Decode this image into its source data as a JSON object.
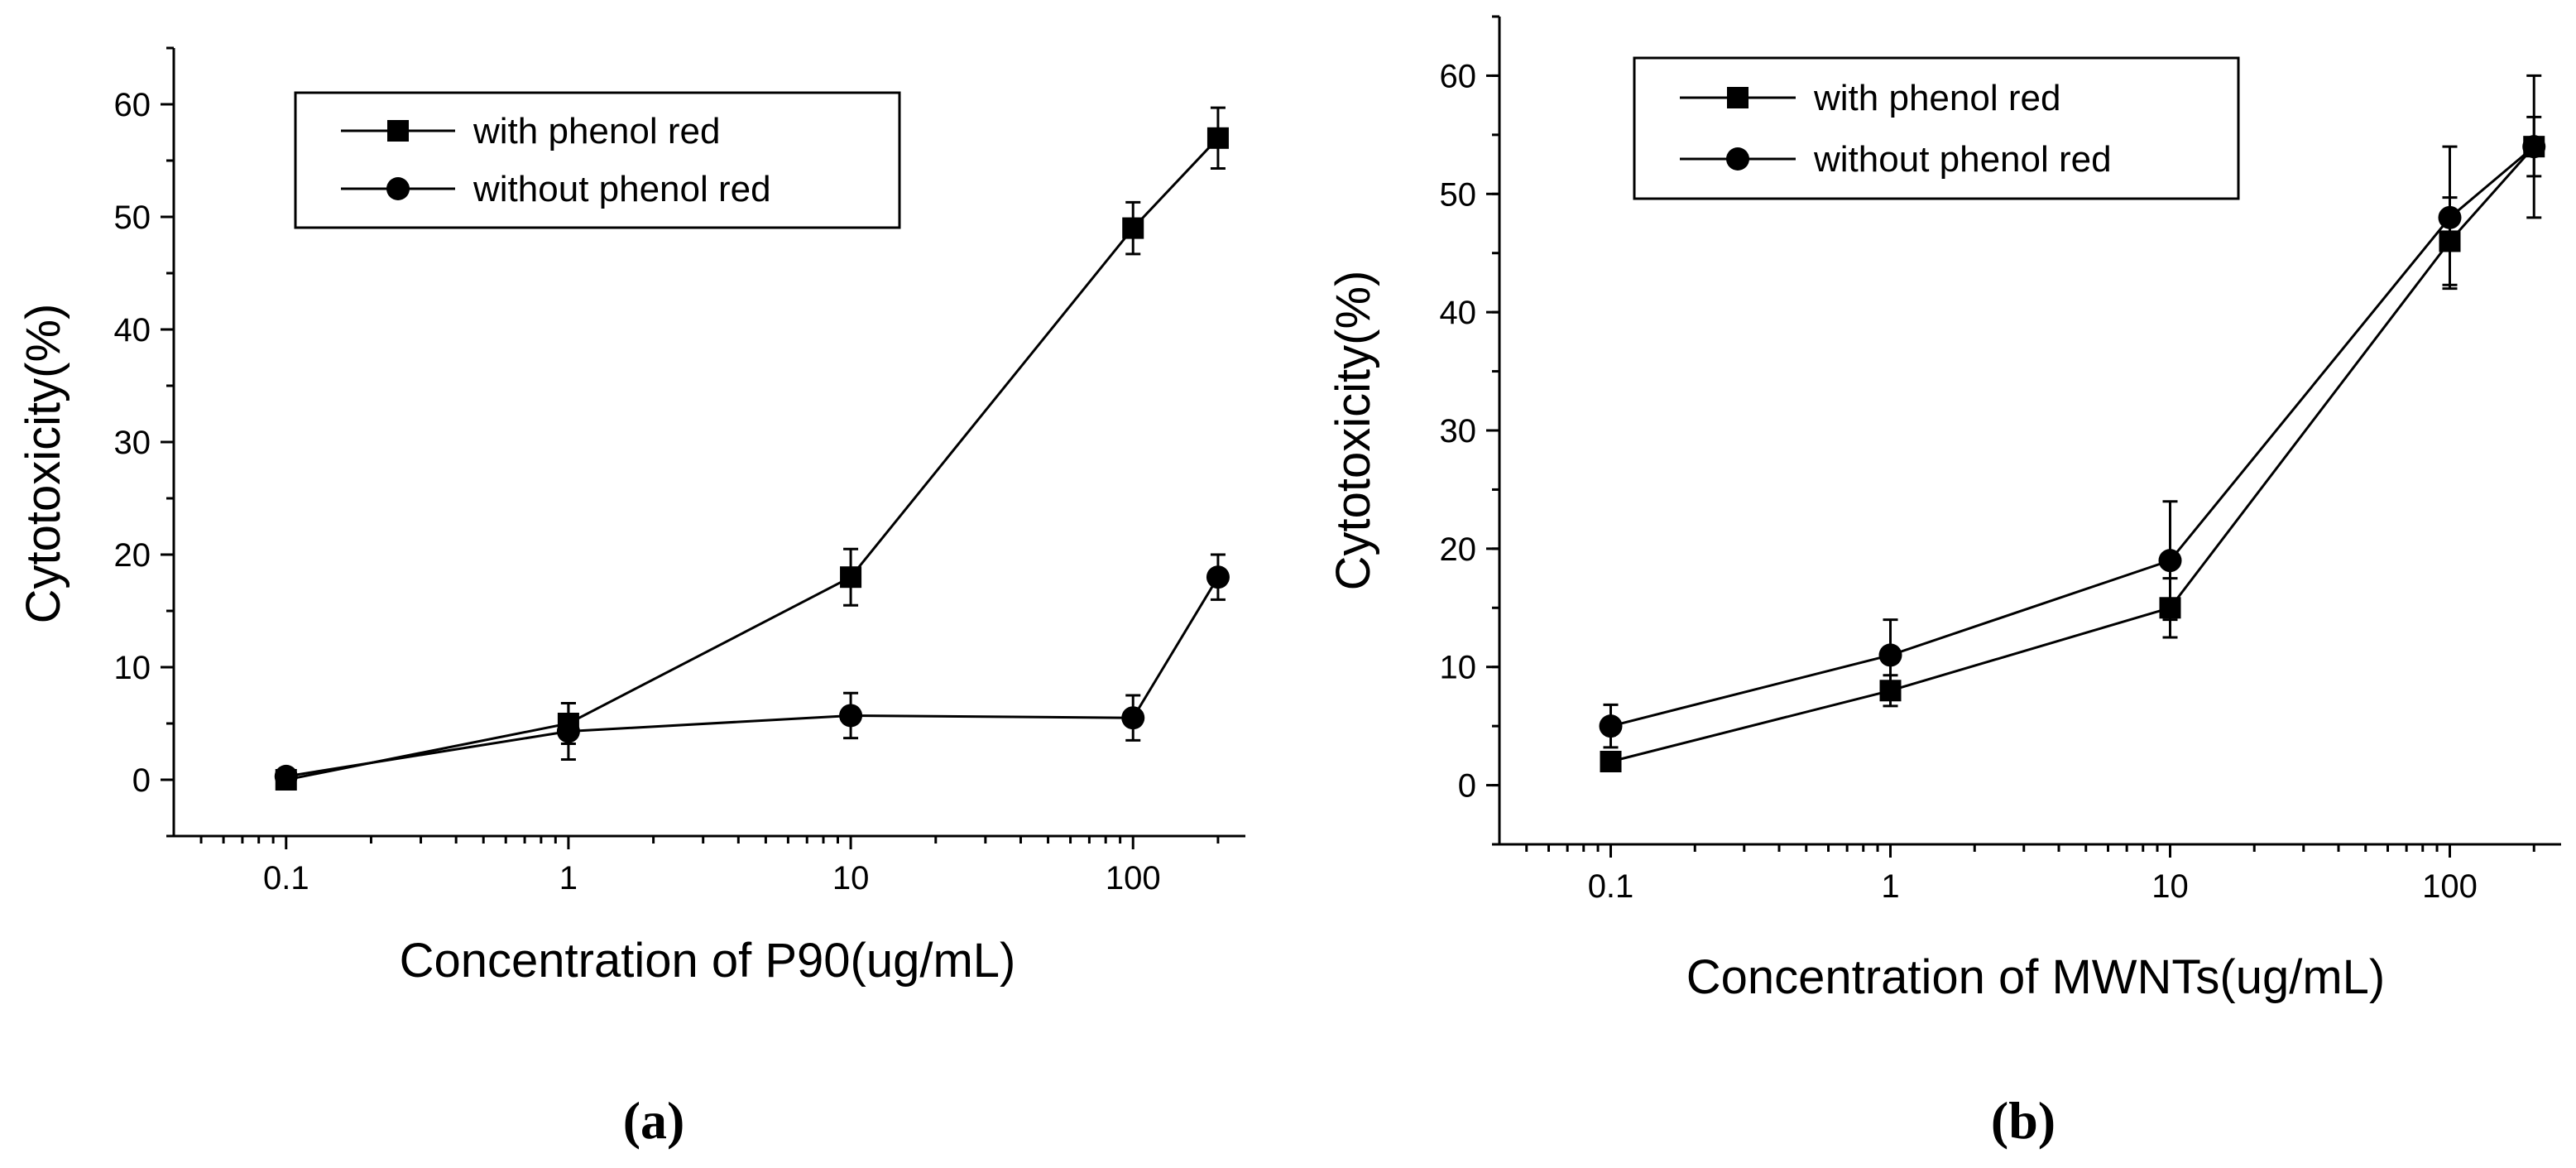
{
  "chart_data": [
    {
      "type": "line",
      "panel_label": "(a)",
      "title": "",
      "xlabel": "Concentration of P90(ug/mL)",
      "ylabel": "Cytotoxicity(%)",
      "xscale": "log",
      "xlim": [
        0.04,
        250
      ],
      "ylim": [
        -5,
        65
      ],
      "xticks": [
        0.1,
        1,
        10,
        100
      ],
      "xtick_labels": [
        "0.1",
        "1",
        "10",
        "100"
      ],
      "yticks": [
        0,
        10,
        20,
        30,
        40,
        50,
        60
      ],
      "ytick_labels": [
        "0",
        "10",
        "20",
        "30",
        "40",
        "50",
        "60"
      ],
      "legend_position": "top-left",
      "x": [
        0.1,
        1,
        10,
        100,
        200
      ],
      "series": [
        {
          "name": "with phenol red",
          "marker": "square",
          "values": [
            0,
            5,
            18,
            49,
            57
          ],
          "errors": [
            0.5,
            1.8,
            2.5,
            2.3,
            2.7
          ]
        },
        {
          "name": "without phenol red",
          "marker": "circle",
          "values": [
            0.3,
            4.3,
            5.7,
            5.5,
            18
          ],
          "errors": [
            0.4,
            2.5,
            2.0,
            2.0,
            2.0
          ]
        }
      ]
    },
    {
      "type": "line",
      "panel_label": "(b)",
      "title": "",
      "xlabel": "Concentration of MWNTs(ug/mL)",
      "ylabel": "Cytotoxicity(%)",
      "xscale": "log",
      "xlim": [
        0.04,
        250
      ],
      "ylim": [
        -5,
        65
      ],
      "xticks": [
        0.1,
        1,
        10,
        100
      ],
      "xtick_labels": [
        "0.1",
        "1",
        "10",
        "100"
      ],
      "yticks": [
        0,
        10,
        20,
        30,
        40,
        50,
        60
      ],
      "ytick_labels": [
        "0",
        "10",
        "20",
        "30",
        "40",
        "50",
        "60"
      ],
      "legend_position": "top-left",
      "x": [
        0.1,
        1,
        10,
        100,
        200
      ],
      "series": [
        {
          "name": "with phenol red",
          "marker": "square",
          "values": [
            2,
            8,
            15,
            46,
            54
          ],
          "errors": [
            0.8,
            1.3,
            2.5,
            3.7,
            2.5
          ]
        },
        {
          "name": "without phenol red",
          "marker": "circle",
          "values": [
            5,
            11,
            19,
            48,
            54
          ],
          "errors": [
            1.8,
            3.0,
            5.0,
            6.0,
            6.0
          ]
        }
      ]
    }
  ]
}
